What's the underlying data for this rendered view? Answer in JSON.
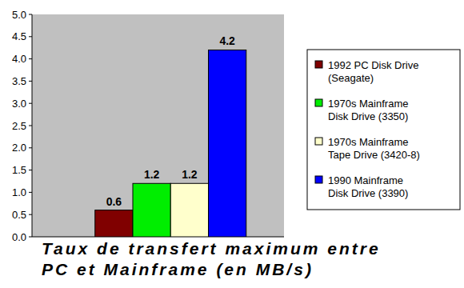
{
  "chart_data": {
    "type": "bar",
    "title": "Taux de transfert maximum entre PC et Mainframe (en MB/s)",
    "categories": [
      null
    ],
    "series": [
      {
        "name": "1992 PC Disk Drive (Seagate)",
        "color": "#800000",
        "values": [
          0.6
        ]
      },
      {
        "name": "1970s Mainframe Disk Drive (3350)",
        "color": "#00ee00",
        "values": [
          1.2
        ]
      },
      {
        "name": "1970s Mainframe Tape Drive (3420-8)",
        "color": "#ffffcc",
        "values": [
          1.2
        ]
      },
      {
        "name": "1990 Mainframe Disk Drive (3390)",
        "color": "#0000ff",
        "values": [
          4.2
        ]
      }
    ],
    "ylim": [
      0,
      5
    ],
    "yticks": [
      {
        "value": 0,
        "label": "0.0"
      },
      0.5,
      {
        "value": 1,
        "label": "1.0"
      },
      1.5,
      {
        "value": 2,
        "label": "2.0"
      },
      2.5,
      {
        "value": 3,
        "label": "3.0"
      },
      3.5,
      {
        "value": 4,
        "label": "4.0"
      },
      4.5,
      {
        "value": 5,
        "label": "5.0"
      }
    ],
    "grid": false,
    "legend": "right",
    "data_labels": true
  }
}
